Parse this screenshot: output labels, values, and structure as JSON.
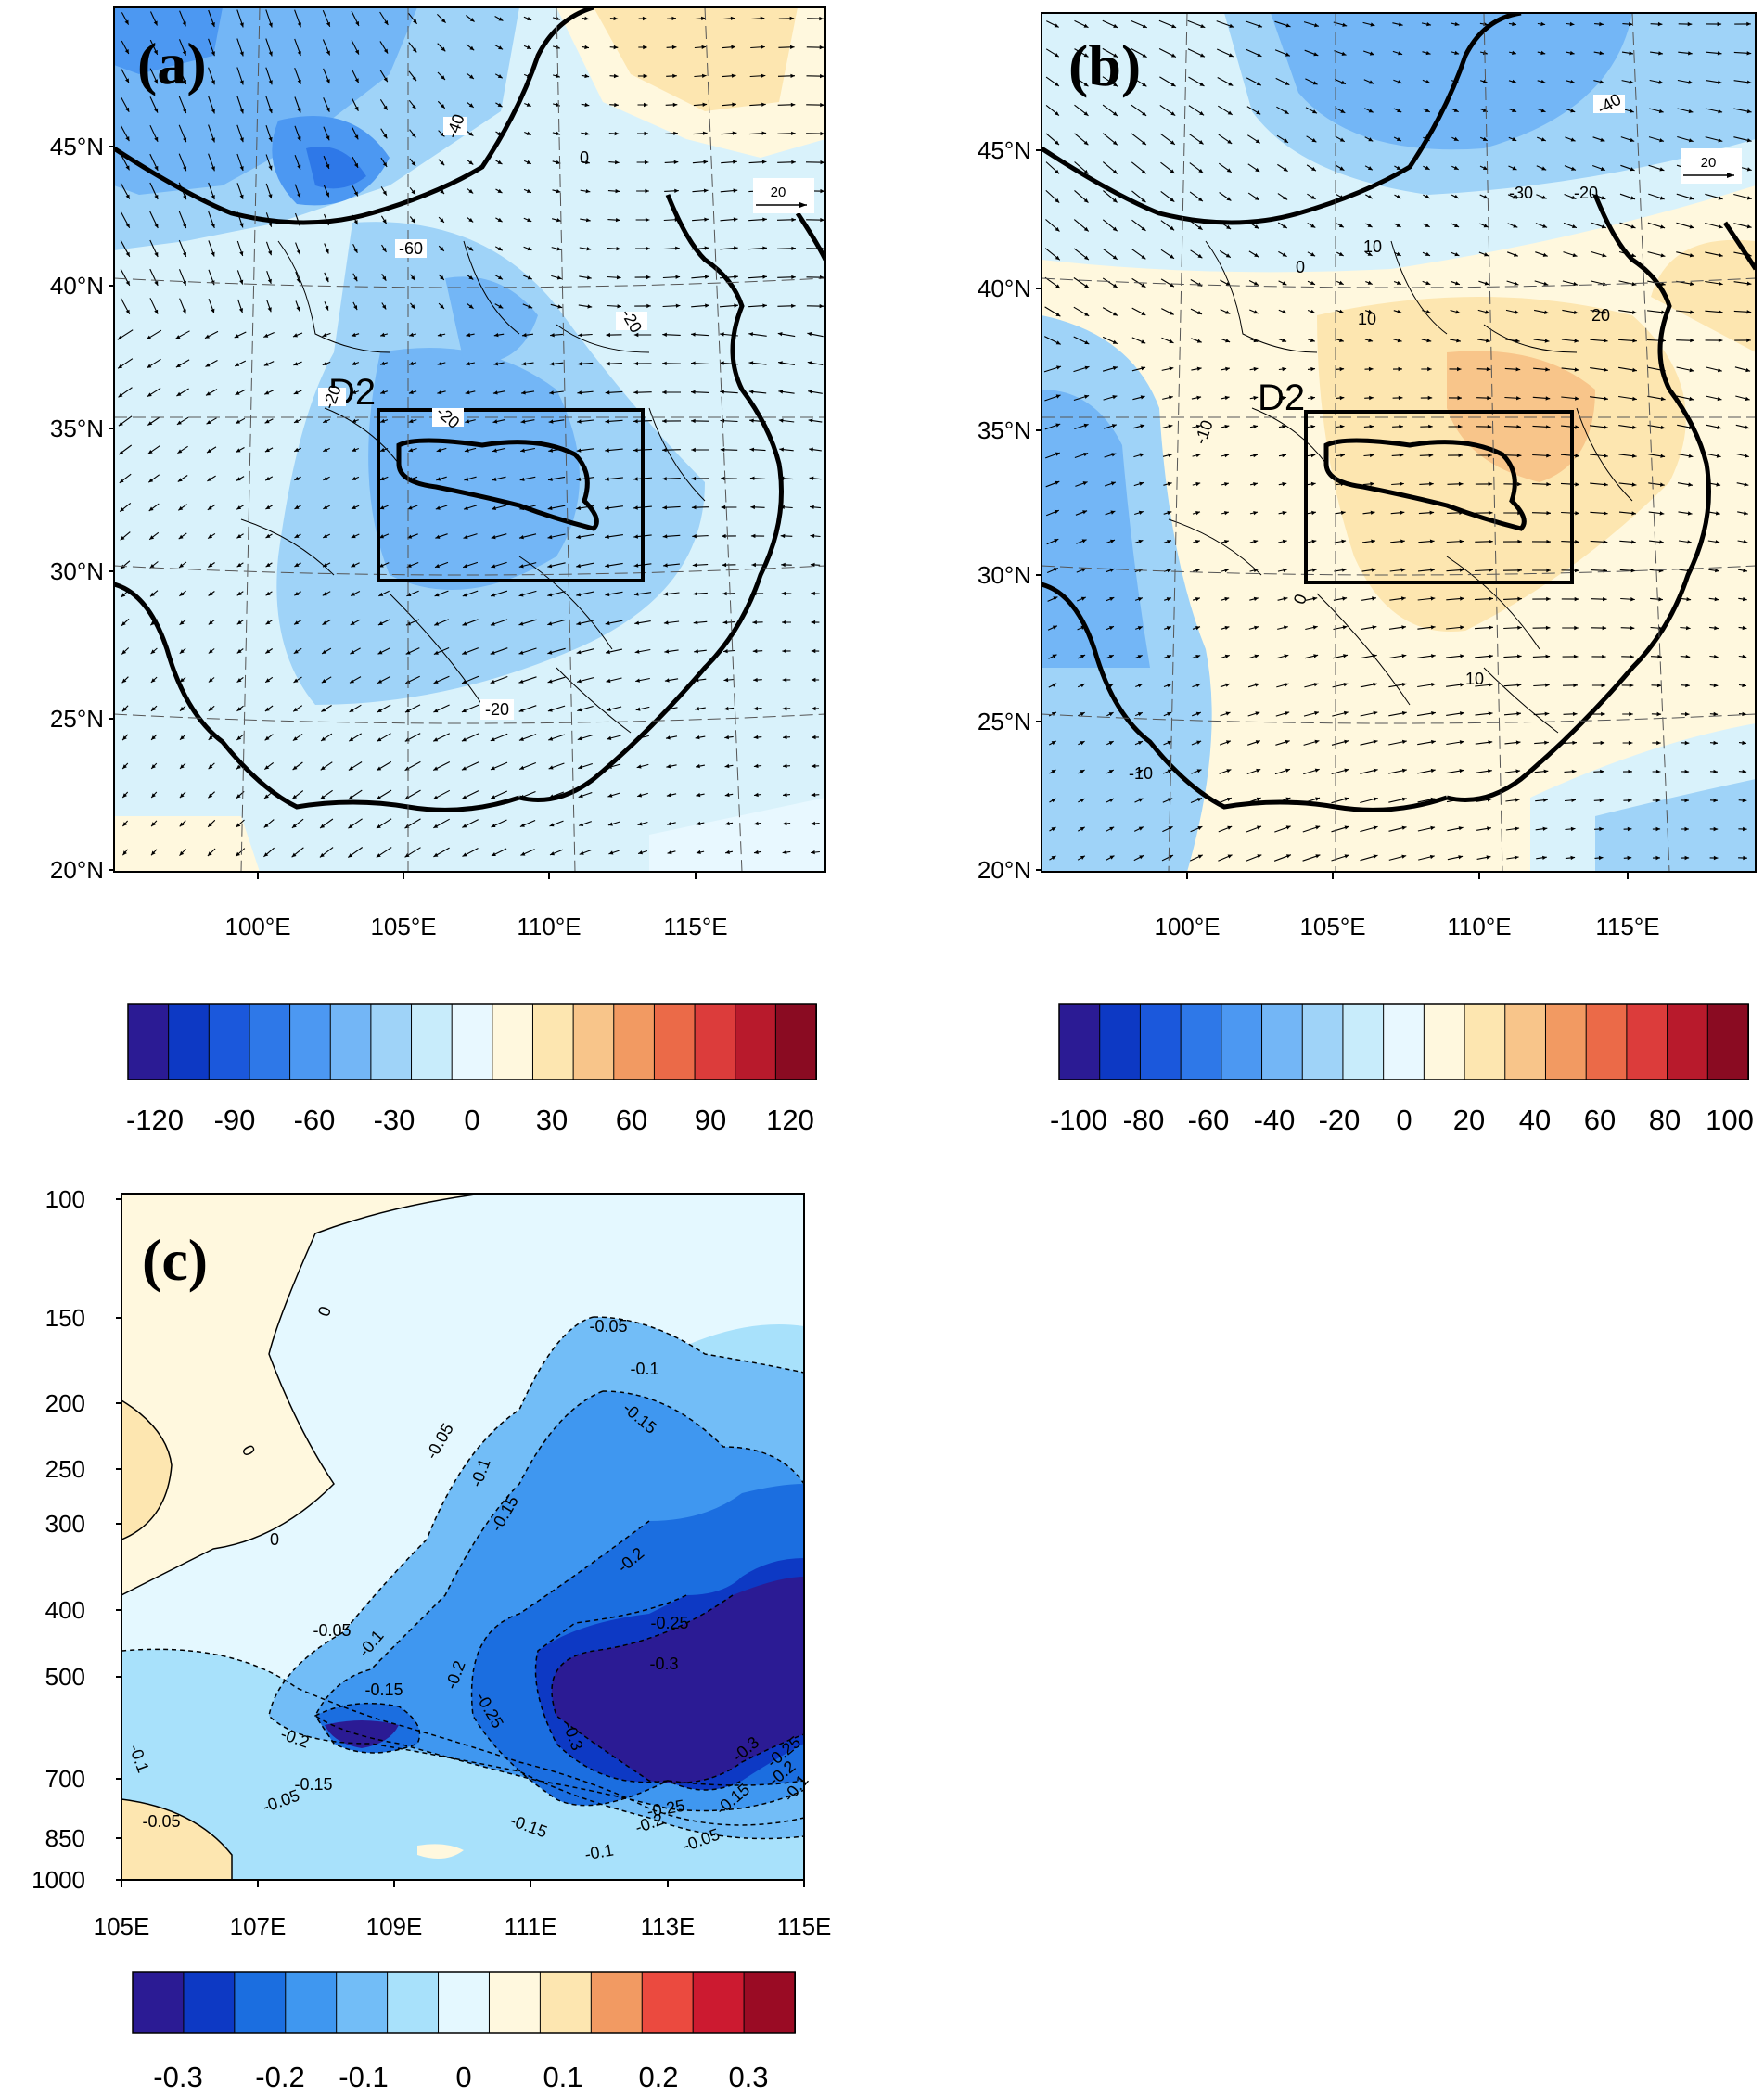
{
  "panels": {
    "a": {
      "label": "(a)",
      "box_label": "D2",
      "ref_vector_label": "20",
      "lat_ticks": [
        "45°N",
        "40°N",
        "35°N",
        "30°N",
        "25°N",
        "20°N"
      ],
      "lon_ticks": [
        "100°E",
        "105°E",
        "110°E",
        "115°E"
      ],
      "contour_labels": [
        "-40",
        "-60",
        "0",
        "-20",
        "-20",
        "-20",
        "-20"
      ],
      "colorbar_ticks": [
        "-120",
        "-90",
        "-60",
        "-30",
        "0",
        "30",
        "60",
        "90",
        "120"
      ],
      "colorbar_colors": [
        "#2b1b94",
        "#0d39c4",
        "#1b58dc",
        "#2e78e8",
        "#4c98f2",
        "#73b6f6",
        "#9fd3f8",
        "#c8ecfb",
        "#e8f8ff",
        "#fff8de",
        "#fde6b0",
        "#f8c58a",
        "#f29a62",
        "#eb6a48",
        "#dc3c3b",
        "#b81a2c",
        "#8a0b22"
      ]
    },
    "b": {
      "label": "(b)",
      "box_label": "D2",
      "ref_vector_label": "20",
      "lat_ticks": [
        "45°N",
        "40°N",
        "35°N",
        "30°N",
        "25°N",
        "20°N"
      ],
      "lon_ticks": [
        "100°E",
        "105°E",
        "110°E",
        "115°E"
      ],
      "contour_labels": [
        "-40",
        "-30",
        "-20",
        "0",
        "10",
        "-10",
        "10",
        "0",
        "10",
        "20",
        "-10"
      ],
      "colorbar_ticks": [
        "-100",
        "-80",
        "-60",
        "-40",
        "-20",
        "0",
        "20",
        "40",
        "60",
        "80",
        "100"
      ],
      "colorbar_colors": [
        "#2b1b94",
        "#0d39c4",
        "#1b58dc",
        "#2e78e8",
        "#4c98f2",
        "#73b6f6",
        "#9fd3f8",
        "#c8ecfb",
        "#e8f8ff",
        "#fff8de",
        "#fde6b0",
        "#f8c58a",
        "#f29a62",
        "#eb6a48",
        "#dc3c3b",
        "#b81a2c",
        "#8a0b22"
      ]
    },
    "c": {
      "label": "(c)",
      "y_ticks": [
        "100",
        "150",
        "200",
        "250",
        "300",
        "400",
        "500",
        "700",
        "850",
        "1000"
      ],
      "x_ticks": [
        "105E",
        "107E",
        "109E",
        "111E",
        "113E",
        "115E"
      ],
      "contour_labels": [
        "0",
        "0",
        "0",
        "-0.05",
        "-0.1",
        "-0.15",
        "-0.05",
        "-0.1",
        "-0.15",
        "-0.2",
        "-0.25",
        "-0.3",
        "-0.05",
        "-0.1",
        "-0.15",
        "-0.2",
        "-0.25",
        "-0.3",
        "-0.25",
        "-0.2",
        "-0.15",
        "-0.1",
        "-0.05",
        "-0.3",
        "-0.25",
        "-0.2",
        "-0.15",
        "-0.1",
        "-0.05",
        "-0.1",
        "-0.2",
        "-0.15",
        "-0.05"
      ],
      "colorbar_ticks": [
        "-0.3",
        "-0.2",
        "-0.1",
        "0",
        "0.1",
        "0.2",
        "0.3"
      ],
      "colorbar_colors": [
        "#2b1b94",
        "#0d39c4",
        "#1b6ee0",
        "#3f97f0",
        "#72bdf7",
        "#a8e1fb",
        "#e4f8ff",
        "#fff8de",
        "#fde6b0",
        "#f29a62",
        "#eb4a3f",
        "#cc1a30",
        "#9a0b24"
      ]
    }
  }
}
